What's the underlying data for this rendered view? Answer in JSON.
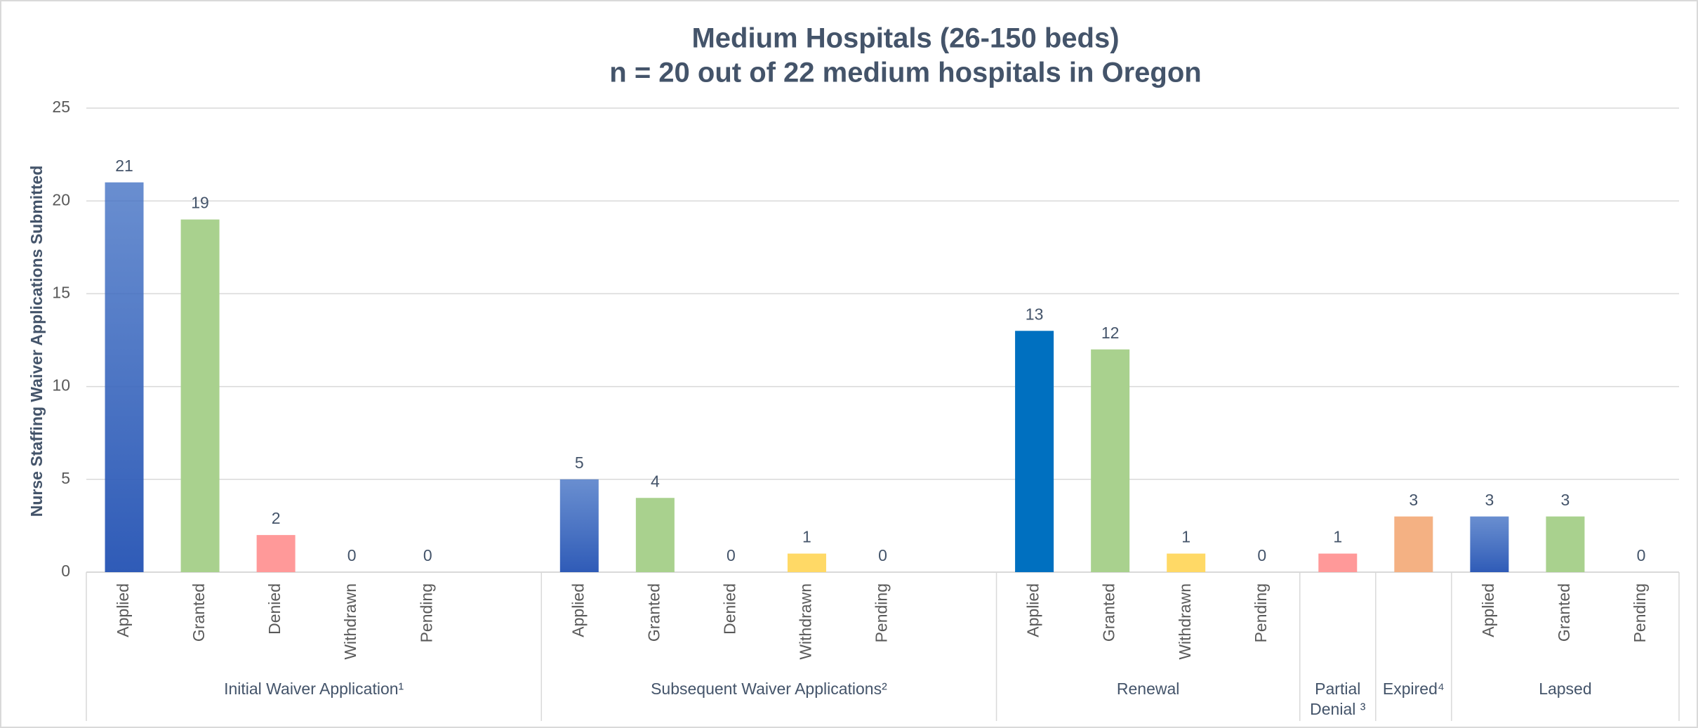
{
  "chart_data": {
    "type": "bar",
    "title": "Medium Hospitals (26-150 beds)",
    "subtitle": "n = 20 out of 22 medium hospitals in Oregon",
    "y_label": "Nurse Staffing Waiver Applications Submitted",
    "categories": [
      "Applied",
      "Granted",
      "Denied",
      "Withdrawn",
      "Pending",
      null,
      "Applied",
      "Granted",
      "Denied",
      "Withdrawn",
      "Pending",
      null,
      "Applied",
      "Granted",
      "Withdrawn",
      "Pending",
      null,
      null,
      "Applied",
      "Granted",
      "Pending"
    ],
    "values": [
      21,
      19,
      2,
      0,
      0,
      null,
      5,
      4,
      0,
      1,
      0,
      null,
      13,
      12,
      1,
      0,
      1,
      3,
      3,
      3,
      0
    ],
    "colors": [
      "#4472c4",
      "#a9d18e",
      "#ff9999",
      "#ffd966",
      "#ffd966",
      null,
      "#4472c4",
      "#a9d18e",
      "#ff9999",
      "#ffd966",
      "#ffd966",
      null,
      "#0070c0",
      "#a9d18e",
      "#ffd966",
      "#ffd966",
      "#ff9999",
      "#f4b183",
      "#4472c4",
      "#a9d18e",
      "#ffd966"
    ],
    "gradient_colors": [
      "#4472c4"
    ],
    "groups": [
      {
        "name": "Initial Waiver Application¹",
        "span": 6
      },
      {
        "name": "Subsequent Waiver Applications²",
        "span": 6
      },
      {
        "name": "Renewal",
        "span": 4
      },
      {
        "name": "Partial Denial ³",
        "span": 1
      },
      {
        "name": "Expired⁴",
        "span": 1
      },
      {
        "name": "Lapsed",
        "span": 3
      }
    ],
    "ylim": [
      0,
      25
    ],
    "yticks": [
      0,
      5,
      10,
      15,
      20,
      25
    ],
    "grid": true
  }
}
